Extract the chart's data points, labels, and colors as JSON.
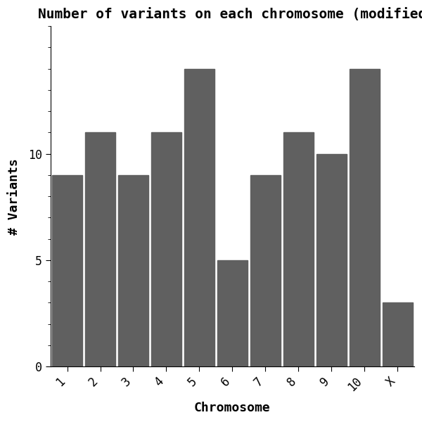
{
  "categories": [
    "1",
    "2",
    "3",
    "4",
    "5",
    "6",
    "7",
    "8",
    "9",
    "10",
    "X"
  ],
  "values": [
    9,
    11,
    9,
    11,
    14,
    5,
    9,
    11,
    10,
    14,
    3
  ],
  "bar_color": "#606060",
  "title": "Number of variants on each chromosome (modified",
  "xlabel": "Chromosome",
  "ylabel": "# Variants",
  "ylim": [
    0,
    16
  ],
  "yticks_major": [
    0,
    5,
    10
  ],
  "title_fontsize": 14,
  "label_fontsize": 13,
  "tick_fontsize": 12,
  "background_color": "#ffffff",
  "font_family": "monospace",
  "bar_width": 0.92
}
